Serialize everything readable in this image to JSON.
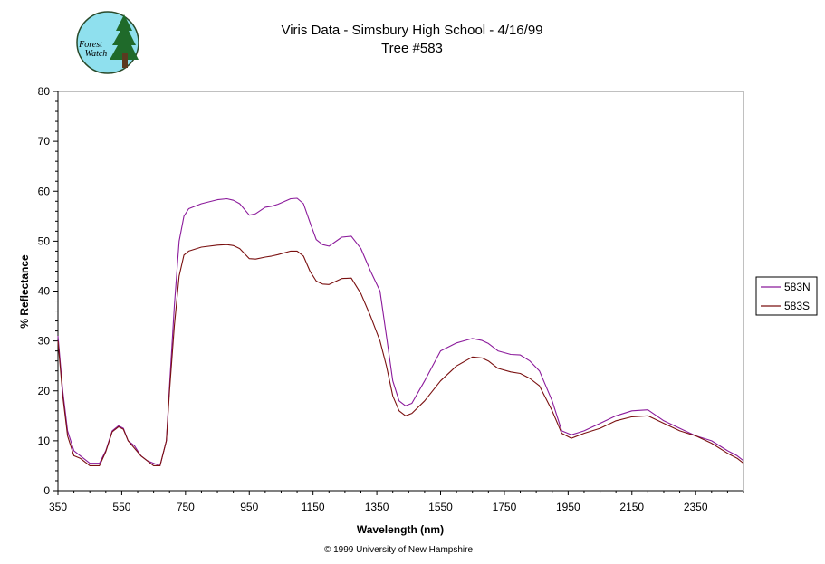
{
  "logo": {
    "line1": "Forest",
    "line2": "Watch",
    "colors": {
      "sky": "#8fe0ee",
      "tree": "#1f6a2a",
      "trunk": "#5a3a20",
      "ring": "#2a4a2a"
    }
  },
  "credit": "© 1999 University of New Hampshire",
  "colors": {
    "n": "#8b1a9b",
    "s": "#7a1010",
    "frame": "#808080",
    "axis": "#000000"
  },
  "chart_data": {
    "type": "line",
    "title": "Viris Data - Simsbury High School - 4/16/99",
    "subtitle": "Tree #583",
    "xlabel": "Wavelength (nm)",
    "ylabel": "% Reflectance",
    "xlim": [
      350,
      2500
    ],
    "ylim": [
      0,
      80
    ],
    "xticks": [
      350,
      550,
      750,
      950,
      1150,
      1350,
      1550,
      1750,
      1950,
      2150,
      2350
    ],
    "yticks": [
      0,
      10,
      20,
      30,
      40,
      50,
      60,
      70,
      80
    ],
    "legend_position": "right",
    "grid": false,
    "series": [
      {
        "name": "583N",
        "x": [
          350,
          365,
          380,
          400,
          420,
          450,
          480,
          500,
          520,
          540,
          555,
          570,
          590,
          610,
          630,
          650,
          670,
          690,
          700,
          715,
          730,
          745,
          760,
          800,
          850,
          880,
          900,
          920,
          950,
          970,
          1000,
          1020,
          1040,
          1080,
          1100,
          1120,
          1140,
          1160,
          1180,
          1200,
          1240,
          1270,
          1300,
          1330,
          1360,
          1380,
          1400,
          1420,
          1440,
          1460,
          1500,
          1550,
          1600,
          1650,
          1680,
          1700,
          1730,
          1770,
          1800,
          1830,
          1860,
          1900,
          1930,
          1960,
          2000,
          2050,
          2100,
          2150,
          2200,
          2250,
          2300,
          2350,
          2400,
          2450,
          2480,
          2500
        ],
        "y": [
          31,
          20,
          12,
          8,
          7,
          5.5,
          5.5,
          8,
          12,
          13,
          12.5,
          10,
          9,
          7,
          6,
          5.5,
          5,
          10,
          21,
          37,
          50,
          55,
          56.5,
          57.5,
          58.3,
          58.5,
          58.2,
          57.5,
          55.2,
          55.5,
          56.8,
          57,
          57.4,
          58.5,
          58.6,
          57.5,
          53.8,
          50.3,
          49.3,
          49,
          50.8,
          51,
          48.5,
          44,
          40,
          31,
          22,
          18,
          17,
          17.5,
          22,
          28,
          29.6,
          30.5,
          30.1,
          29.5,
          28,
          27.3,
          27.2,
          26,
          24,
          18,
          12,
          11.2,
          12,
          13.5,
          15,
          16,
          16.2,
          14,
          12.5,
          11,
          10,
          8,
          7,
          6
        ]
      },
      {
        "name": "583S",
        "x": [
          350,
          365,
          380,
          400,
          420,
          450,
          480,
          500,
          520,
          540,
          555,
          570,
          590,
          610,
          630,
          650,
          670,
          690,
          700,
          715,
          730,
          745,
          760,
          800,
          850,
          880,
          900,
          920,
          950,
          970,
          1000,
          1020,
          1040,
          1080,
          1100,
          1120,
          1140,
          1160,
          1180,
          1200,
          1240,
          1270,
          1300,
          1330,
          1360,
          1380,
          1400,
          1420,
          1440,
          1460,
          1500,
          1550,
          1600,
          1650,
          1680,
          1700,
          1730,
          1770,
          1800,
          1830,
          1860,
          1900,
          1930,
          1960,
          2000,
          2050,
          2100,
          2150,
          2200,
          2250,
          2300,
          2350,
          2400,
          2450,
          2480,
          2500
        ],
        "y": [
          30,
          19,
          11,
          7,
          6.5,
          5,
          5,
          7.8,
          11.8,
          12.8,
          12.3,
          10,
          8.5,
          7,
          6,
          5,
          5,
          10,
          20,
          33,
          43,
          47.2,
          48,
          48.8,
          49.2,
          49.3,
          49.1,
          48.5,
          46.5,
          46.4,
          46.8,
          47,
          47.3,
          48,
          48,
          47,
          44,
          42,
          41.4,
          41.3,
          42.5,
          42.6,
          39.5,
          35,
          30,
          25,
          19,
          16,
          15,
          15.5,
          18,
          22,
          25,
          26.8,
          26.6,
          26,
          24.5,
          23.8,
          23.5,
          22.5,
          21,
          16,
          11.5,
          10.5,
          11.5,
          12.5,
          14,
          14.8,
          15,
          13.5,
          12,
          11,
          9.5,
          7.5,
          6.5,
          5.5
        ]
      }
    ]
  }
}
